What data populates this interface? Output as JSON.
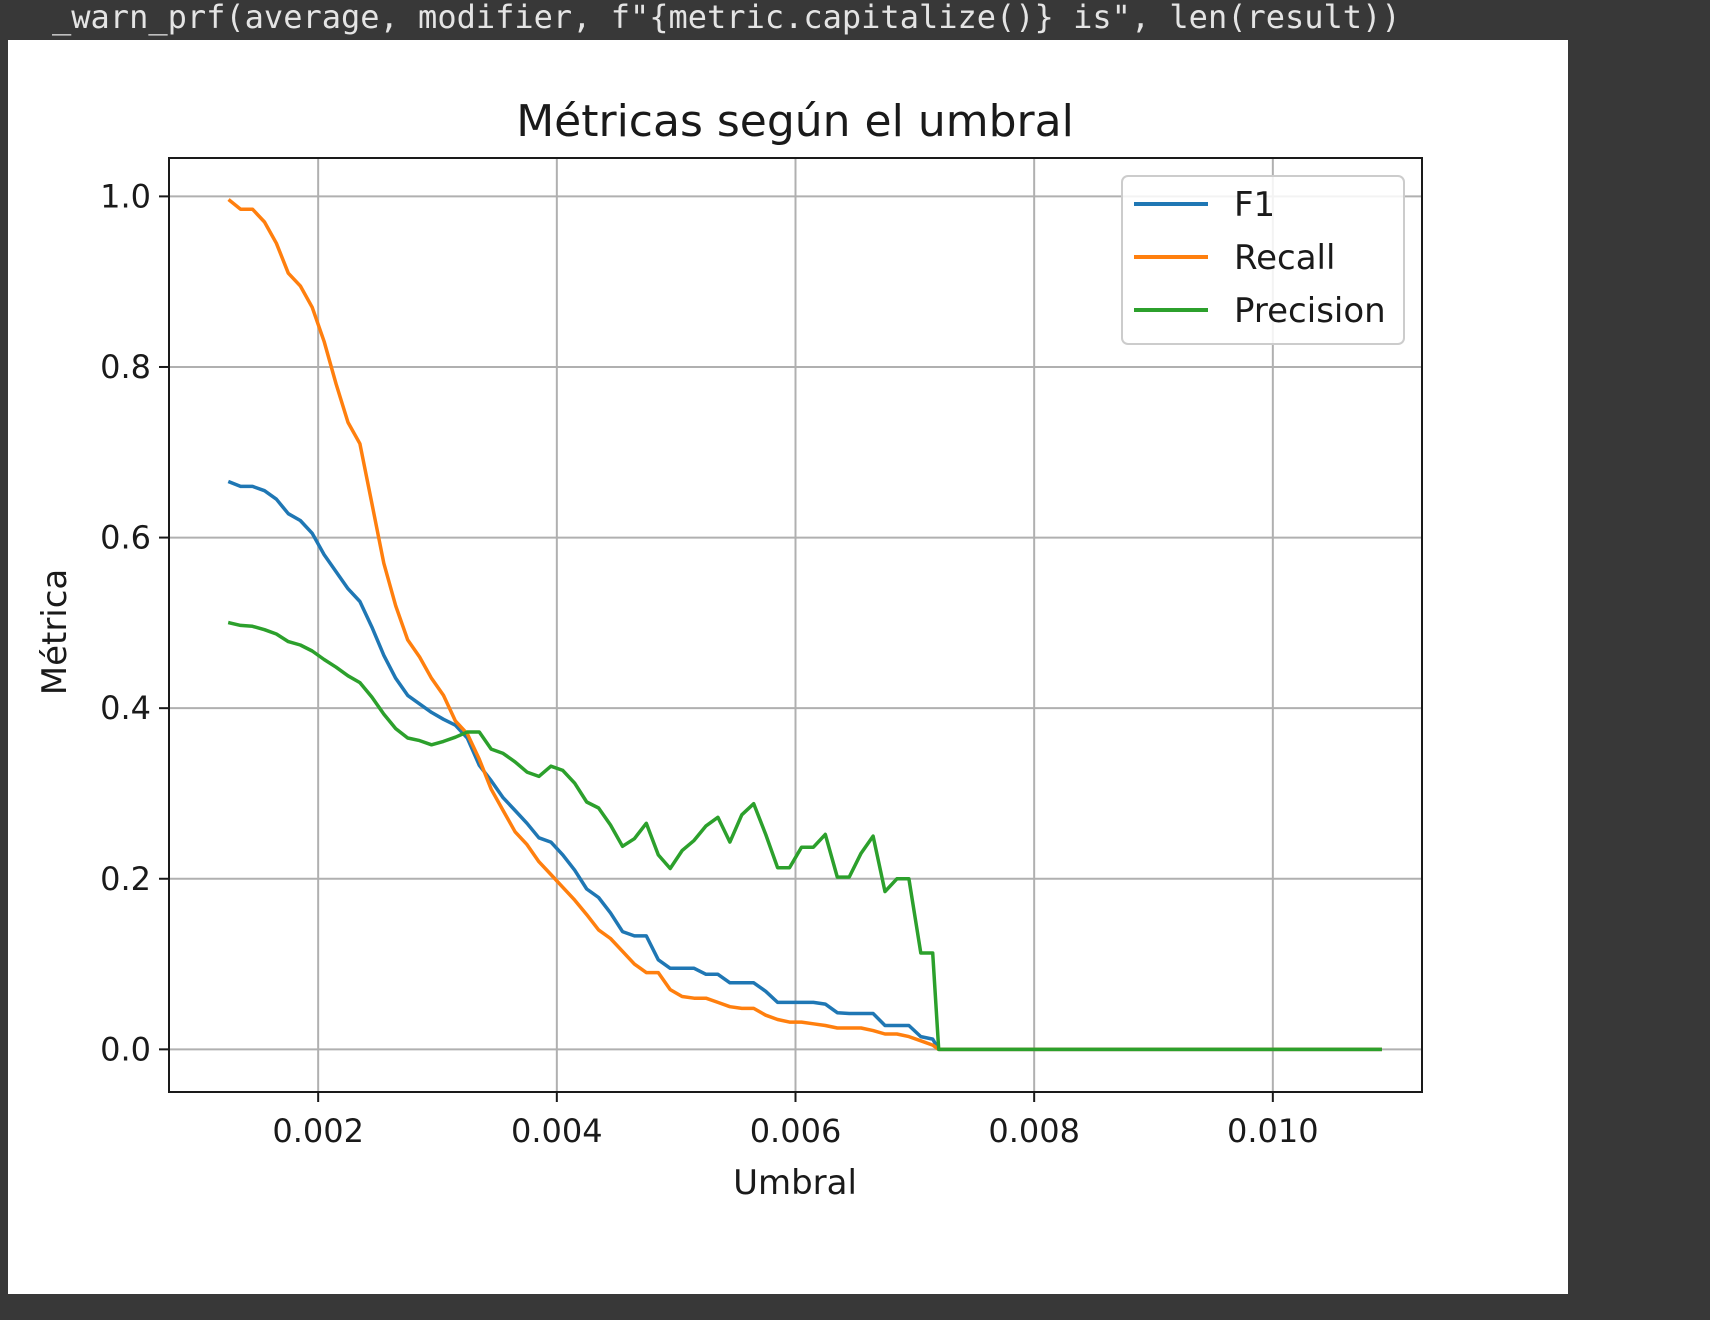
{
  "console": {
    "warning_text": "_warn_prf(average, modifier, f\"{metric.capitalize()} is\", len(result))"
  },
  "chart_data": {
    "type": "line",
    "title": "Métricas según el umbral",
    "xlabel": "Umbral",
    "ylabel": "Métrica",
    "xlim": [
      0.00075,
      0.01125
    ],
    "ylim": [
      -0.05,
      1.045
    ],
    "xticks": [
      0.002,
      0.004,
      0.006,
      0.008,
      0.01
    ],
    "xtick_labels": [
      "0.002",
      "0.004",
      "0.006",
      "0.008",
      "0.010"
    ],
    "yticks": [
      0.0,
      0.2,
      0.4,
      0.6,
      0.8,
      1.0
    ],
    "ytick_labels": [
      "0.0",
      "0.2",
      "0.4",
      "0.6",
      "0.8",
      "1.0"
    ],
    "grid": true,
    "legend_position": "top-right",
    "series": [
      {
        "name": "F1",
        "color": "#1f77b4",
        "x": [
          0.00126,
          0.00135,
          0.00145,
          0.00155,
          0.00165,
          0.00175,
          0.00185,
          0.00195,
          0.00205,
          0.00215,
          0.00225,
          0.00235,
          0.00245,
          0.00255,
          0.00265,
          0.00275,
          0.00285,
          0.00295,
          0.00305,
          0.00315,
          0.00325,
          0.00335,
          0.00345,
          0.00355,
          0.00365,
          0.00375,
          0.00385,
          0.00395,
          0.00405,
          0.00415,
          0.00425,
          0.00435,
          0.00445,
          0.00455,
          0.00465,
          0.00475,
          0.00485,
          0.00495,
          0.00505,
          0.00515,
          0.00525,
          0.00535,
          0.00545,
          0.00555,
          0.00565,
          0.00575,
          0.00585,
          0.00595,
          0.00605,
          0.00615,
          0.00625,
          0.00635,
          0.00645,
          0.00655,
          0.00665,
          0.00675,
          0.00685,
          0.00695,
          0.00705,
          0.00715,
          0.0072,
          0.0078,
          0.0085,
          0.0092,
          0.0099,
          0.0106,
          0.0109
        ],
        "y": [
          0.665,
          0.66,
          0.66,
          0.655,
          0.645,
          0.628,
          0.62,
          0.605,
          0.58,
          0.56,
          0.54,
          0.525,
          0.495,
          0.462,
          0.435,
          0.415,
          0.405,
          0.395,
          0.387,
          0.38,
          0.365,
          0.333,
          0.315,
          0.295,
          0.28,
          0.265,
          0.248,
          0.243,
          0.228,
          0.21,
          0.188,
          0.178,
          0.16,
          0.138,
          0.133,
          0.133,
          0.105,
          0.095,
          0.095,
          0.095,
          0.088,
          0.088,
          0.078,
          0.078,
          0.078,
          0.068,
          0.055,
          0.055,
          0.055,
          0.055,
          0.053,
          0.043,
          0.042,
          0.042,
          0.042,
          0.028,
          0.028,
          0.028,
          0.015,
          0.012,
          0.0,
          0.0,
          0.0,
          0.0,
          0.0,
          0.0,
          0.0
        ]
      },
      {
        "name": "Recall",
        "color": "#ff7f0e",
        "x": [
          0.00126,
          0.00135,
          0.00145,
          0.00155,
          0.00165,
          0.00175,
          0.00185,
          0.00195,
          0.00205,
          0.00215,
          0.00225,
          0.00235,
          0.00245,
          0.00255,
          0.00265,
          0.00275,
          0.00285,
          0.00295,
          0.00305,
          0.00315,
          0.00325,
          0.00335,
          0.00345,
          0.00355,
          0.00365,
          0.00375,
          0.00385,
          0.00395,
          0.00405,
          0.00415,
          0.00425,
          0.00435,
          0.00445,
          0.00455,
          0.00465,
          0.00475,
          0.00485,
          0.00495,
          0.00505,
          0.00515,
          0.00525,
          0.00535,
          0.00545,
          0.00555,
          0.00565,
          0.00575,
          0.00585,
          0.00595,
          0.00605,
          0.00615,
          0.00625,
          0.00635,
          0.00645,
          0.00655,
          0.00665,
          0.00675,
          0.00685,
          0.00695,
          0.00705,
          0.00715,
          0.0072,
          0.0078,
          0.0085,
          0.0092,
          0.0099,
          0.0106,
          0.0109
        ],
        "y": [
          0.995,
          0.985,
          0.985,
          0.97,
          0.945,
          0.91,
          0.895,
          0.87,
          0.83,
          0.78,
          0.735,
          0.71,
          0.64,
          0.57,
          0.52,
          0.48,
          0.46,
          0.435,
          0.415,
          0.385,
          0.37,
          0.34,
          0.305,
          0.28,
          0.255,
          0.24,
          0.22,
          0.205,
          0.19,
          0.175,
          0.158,
          0.14,
          0.13,
          0.115,
          0.1,
          0.09,
          0.09,
          0.07,
          0.062,
          0.06,
          0.06,
          0.055,
          0.05,
          0.048,
          0.048,
          0.04,
          0.035,
          0.032,
          0.032,
          0.03,
          0.028,
          0.025,
          0.025,
          0.025,
          0.022,
          0.018,
          0.018,
          0.015,
          0.01,
          0.005,
          0.0,
          0.0,
          0.0,
          0.0,
          0.0,
          0.0,
          0.0
        ]
      },
      {
        "name": "Precision",
        "color": "#2ca02c",
        "x": [
          0.00126,
          0.00135,
          0.00145,
          0.00155,
          0.00165,
          0.00175,
          0.00185,
          0.00195,
          0.00205,
          0.00215,
          0.00225,
          0.00235,
          0.00245,
          0.00255,
          0.00265,
          0.00275,
          0.00285,
          0.00295,
          0.00305,
          0.00315,
          0.00325,
          0.00335,
          0.00345,
          0.00355,
          0.00365,
          0.00375,
          0.00385,
          0.00395,
          0.00405,
          0.00415,
          0.00425,
          0.00435,
          0.00445,
          0.00455,
          0.00465,
          0.00475,
          0.00485,
          0.00495,
          0.00505,
          0.00515,
          0.00525,
          0.00535,
          0.00545,
          0.00555,
          0.00565,
          0.00575,
          0.00585,
          0.00595,
          0.00605,
          0.00615,
          0.00625,
          0.00635,
          0.00645,
          0.00655,
          0.00665,
          0.00675,
          0.00685,
          0.00695,
          0.00705,
          0.00715,
          0.0072,
          0.0078,
          0.0085,
          0.0092,
          0.0099,
          0.0106,
          0.0109
        ],
        "y": [
          0.5,
          0.497,
          0.496,
          0.492,
          0.487,
          0.478,
          0.474,
          0.467,
          0.457,
          0.448,
          0.438,
          0.43,
          0.413,
          0.393,
          0.376,
          0.365,
          0.362,
          0.357,
          0.361,
          0.366,
          0.372,
          0.372,
          0.352,
          0.347,
          0.337,
          0.325,
          0.32,
          0.332,
          0.327,
          0.312,
          0.29,
          0.283,
          0.263,
          0.238,
          0.247,
          0.265,
          0.228,
          0.212,
          0.233,
          0.245,
          0.262,
          0.272,
          0.243,
          0.275,
          0.288,
          0.252,
          0.213,
          0.213,
          0.237,
          0.237,
          0.252,
          0.202,
          0.202,
          0.23,
          0.25,
          0.185,
          0.2,
          0.2,
          0.113,
          0.113,
          0.0,
          0.0,
          0.0,
          0.0,
          0.0,
          0.0,
          0.0
        ]
      }
    ]
  }
}
